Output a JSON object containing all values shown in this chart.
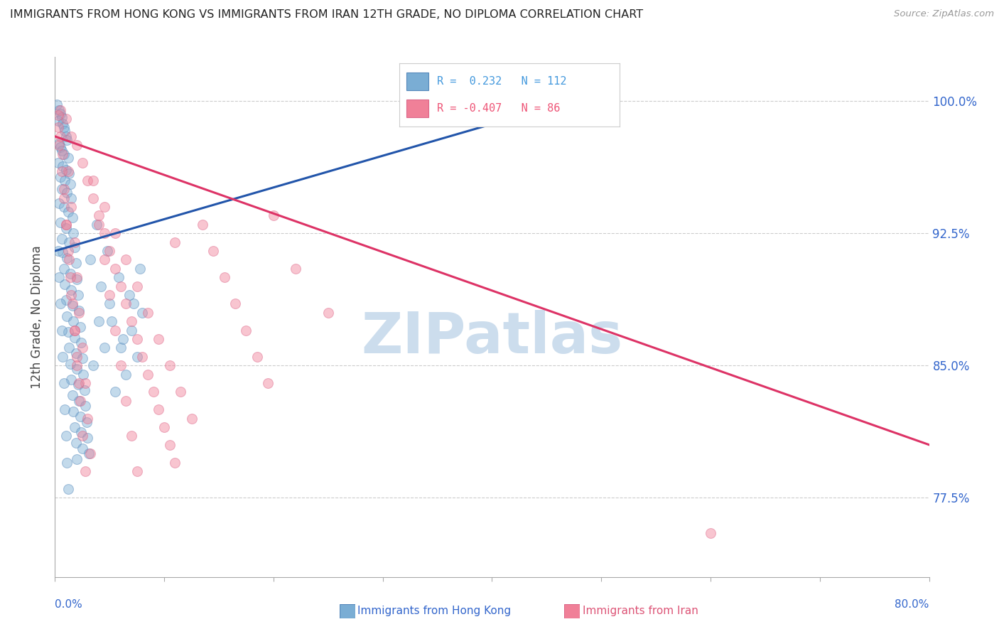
{
  "title": "IMMIGRANTS FROM HONG KONG VS IMMIGRANTS FROM IRAN 12TH GRADE, NO DIPLOMA CORRELATION CHART",
  "source": "Source: ZipAtlas.com",
  "ylabel": "12th Grade, No Diploma",
  "x_tick_vals": [
    0.0,
    10.0,
    20.0,
    30.0,
    40.0,
    50.0,
    60.0,
    70.0,
    80.0
  ],
  "y_tick_labels": [
    "100.0%",
    "92.5%",
    "85.0%",
    "77.5%"
  ],
  "y_tick_vals": [
    100.0,
    92.5,
    85.0,
    77.5
  ],
  "xlim": [
    0.0,
    80.0
  ],
  "ylim": [
    73.0,
    102.5
  ],
  "legend_entry_blue": "R =  0.232   N = 112",
  "legend_entry_pink": "R = -0.407   N = 86",
  "blue_trend_x": [
    0.0,
    50.0
  ],
  "blue_trend_y": [
    91.5,
    100.5
  ],
  "pink_trend_x": [
    0.0,
    80.0
  ],
  "pink_trend_y": [
    98.0,
    80.5
  ],
  "watermark": "ZIPatlas",
  "watermark_color": "#ccdded",
  "blue_color": "#7aadd4",
  "pink_color": "#f08098",
  "blue_edge": "#5588bb",
  "pink_edge": "#dd6688",
  "legend_blue_color": "#4499dd",
  "legend_pink_color": "#ee5577",
  "axis_label_color": "#3366cc",
  "bottom_label_color_blue": "#3366cc",
  "bottom_label_color_pink": "#dd5577",
  "blue_dots": [
    [
      0.2,
      99.8
    ],
    [
      0.4,
      99.5
    ],
    [
      0.5,
      99.3
    ],
    [
      0.6,
      99.1
    ],
    [
      0.3,
      98.9
    ],
    [
      0.7,
      98.7
    ],
    [
      0.8,
      98.5
    ],
    [
      0.9,
      98.3
    ],
    [
      1.0,
      98.0
    ],
    [
      1.1,
      97.8
    ],
    [
      0.4,
      97.6
    ],
    [
      0.5,
      97.4
    ],
    [
      0.6,
      97.2
    ],
    [
      0.8,
      97.0
    ],
    [
      1.2,
      96.8
    ],
    [
      0.3,
      96.5
    ],
    [
      0.7,
      96.3
    ],
    [
      1.0,
      96.1
    ],
    [
      1.3,
      95.9
    ],
    [
      0.5,
      95.7
    ],
    [
      0.9,
      95.5
    ],
    [
      1.4,
      95.3
    ],
    [
      0.6,
      95.0
    ],
    [
      1.1,
      94.8
    ],
    [
      1.5,
      94.5
    ],
    [
      0.4,
      94.2
    ],
    [
      0.8,
      94.0
    ],
    [
      1.2,
      93.7
    ],
    [
      1.6,
      93.4
    ],
    [
      0.5,
      93.1
    ],
    [
      1.0,
      92.8
    ],
    [
      1.7,
      92.5
    ],
    [
      0.6,
      92.2
    ],
    [
      1.3,
      92.0
    ],
    [
      1.8,
      91.7
    ],
    [
      0.7,
      91.4
    ],
    [
      1.1,
      91.1
    ],
    [
      1.9,
      90.8
    ],
    [
      0.8,
      90.5
    ],
    [
      1.4,
      90.2
    ],
    [
      2.0,
      89.9
    ],
    [
      0.9,
      89.6
    ],
    [
      1.5,
      89.3
    ],
    [
      2.1,
      89.0
    ],
    [
      1.0,
      88.7
    ],
    [
      1.6,
      88.4
    ],
    [
      2.2,
      88.1
    ],
    [
      1.1,
      87.8
    ],
    [
      1.7,
      87.5
    ],
    [
      2.3,
      87.2
    ],
    [
      1.2,
      86.9
    ],
    [
      1.8,
      86.6
    ],
    [
      2.4,
      86.3
    ],
    [
      1.3,
      86.0
    ],
    [
      1.9,
      85.7
    ],
    [
      2.5,
      85.4
    ],
    [
      1.4,
      85.1
    ],
    [
      2.0,
      84.8
    ],
    [
      2.6,
      84.5
    ],
    [
      1.5,
      84.2
    ],
    [
      2.1,
      83.9
    ],
    [
      2.7,
      83.6
    ],
    [
      1.6,
      83.3
    ],
    [
      2.2,
      83.0
    ],
    [
      2.8,
      82.7
    ],
    [
      1.7,
      82.4
    ],
    [
      2.3,
      82.1
    ],
    [
      2.9,
      81.8
    ],
    [
      1.8,
      81.5
    ],
    [
      2.4,
      81.2
    ],
    [
      3.0,
      80.9
    ],
    [
      1.9,
      80.6
    ],
    [
      2.5,
      80.3
    ],
    [
      3.1,
      80.0
    ],
    [
      2.0,
      79.7
    ],
    [
      3.5,
      85.0
    ],
    [
      4.0,
      87.5
    ],
    [
      4.5,
      86.0
    ],
    [
      5.0,
      88.5
    ],
    [
      5.5,
      83.5
    ],
    [
      6.0,
      86.0
    ],
    [
      6.5,
      84.5
    ],
    [
      7.0,
      87.0
    ],
    [
      7.5,
      85.5
    ],
    [
      8.0,
      88.0
    ],
    [
      3.2,
      91.0
    ],
    [
      4.2,
      89.5
    ],
    [
      5.2,
      87.5
    ],
    [
      6.2,
      86.5
    ],
    [
      7.2,
      88.5
    ],
    [
      3.8,
      93.0
    ],
    [
      4.8,
      91.5
    ],
    [
      5.8,
      90.0
    ],
    [
      6.8,
      89.0
    ],
    [
      7.8,
      90.5
    ],
    [
      0.3,
      91.5
    ],
    [
      0.4,
      90.0
    ],
    [
      0.5,
      88.5
    ],
    [
      0.6,
      87.0
    ],
    [
      0.7,
      85.5
    ],
    [
      0.8,
      84.0
    ],
    [
      0.9,
      82.5
    ],
    [
      1.0,
      81.0
    ],
    [
      1.1,
      79.5
    ],
    [
      1.2,
      78.0
    ],
    [
      35.0,
      99.5
    ],
    [
      45.0,
      99.8
    ]
  ],
  "pink_dots": [
    [
      0.5,
      99.5
    ],
    [
      1.0,
      99.0
    ],
    [
      0.3,
      98.5
    ],
    [
      1.5,
      98.0
    ],
    [
      2.0,
      97.5
    ],
    [
      0.7,
      97.0
    ],
    [
      2.5,
      96.5
    ],
    [
      1.2,
      96.0
    ],
    [
      3.0,
      95.5
    ],
    [
      0.8,
      95.0
    ],
    [
      3.5,
      94.5
    ],
    [
      1.5,
      94.0
    ],
    [
      4.0,
      93.5
    ],
    [
      1.0,
      93.0
    ],
    [
      4.5,
      92.5
    ],
    [
      1.8,
      92.0
    ],
    [
      5.0,
      91.5
    ],
    [
      1.3,
      91.0
    ],
    [
      5.5,
      90.5
    ],
    [
      2.0,
      90.0
    ],
    [
      6.0,
      89.5
    ],
    [
      1.5,
      89.0
    ],
    [
      6.5,
      88.5
    ],
    [
      2.2,
      88.0
    ],
    [
      7.0,
      87.5
    ],
    [
      1.8,
      87.0
    ],
    [
      7.5,
      86.5
    ],
    [
      2.5,
      86.0
    ],
    [
      8.0,
      85.5
    ],
    [
      2.0,
      85.0
    ],
    [
      8.5,
      84.5
    ],
    [
      2.8,
      84.0
    ],
    [
      9.0,
      83.5
    ],
    [
      2.3,
      83.0
    ],
    [
      9.5,
      82.5
    ],
    [
      3.0,
      82.0
    ],
    [
      10.0,
      81.5
    ],
    [
      2.5,
      81.0
    ],
    [
      10.5,
      80.5
    ],
    [
      3.2,
      80.0
    ],
    [
      11.0,
      79.5
    ],
    [
      2.8,
      79.0
    ],
    [
      4.0,
      93.0
    ],
    [
      4.5,
      91.0
    ],
    [
      5.0,
      89.0
    ],
    [
      5.5,
      87.0
    ],
    [
      6.0,
      85.0
    ],
    [
      6.5,
      83.0
    ],
    [
      7.0,
      81.0
    ],
    [
      7.5,
      79.0
    ],
    [
      0.4,
      97.5
    ],
    [
      0.6,
      96.0
    ],
    [
      0.8,
      94.5
    ],
    [
      1.0,
      93.0
    ],
    [
      1.2,
      91.5
    ],
    [
      1.4,
      90.0
    ],
    [
      1.6,
      88.5
    ],
    [
      1.8,
      87.0
    ],
    [
      2.0,
      85.5
    ],
    [
      2.2,
      84.0
    ],
    [
      3.5,
      95.5
    ],
    [
      4.5,
      94.0
    ],
    [
      5.5,
      92.5
    ],
    [
      6.5,
      91.0
    ],
    [
      7.5,
      89.5
    ],
    [
      8.5,
      88.0
    ],
    [
      9.5,
      86.5
    ],
    [
      10.5,
      85.0
    ],
    [
      11.5,
      83.5
    ],
    [
      12.5,
      82.0
    ],
    [
      13.5,
      93.0
    ],
    [
      14.5,
      91.5
    ],
    [
      15.5,
      90.0
    ],
    [
      16.5,
      88.5
    ],
    [
      17.5,
      87.0
    ],
    [
      18.5,
      85.5
    ],
    [
      19.5,
      84.0
    ],
    [
      0.3,
      99.2
    ],
    [
      0.5,
      98.0
    ],
    [
      11.0,
      92.0
    ],
    [
      20.0,
      93.5
    ],
    [
      22.0,
      90.5
    ],
    [
      25.0,
      88.0
    ],
    [
      60.0,
      75.5
    ]
  ]
}
